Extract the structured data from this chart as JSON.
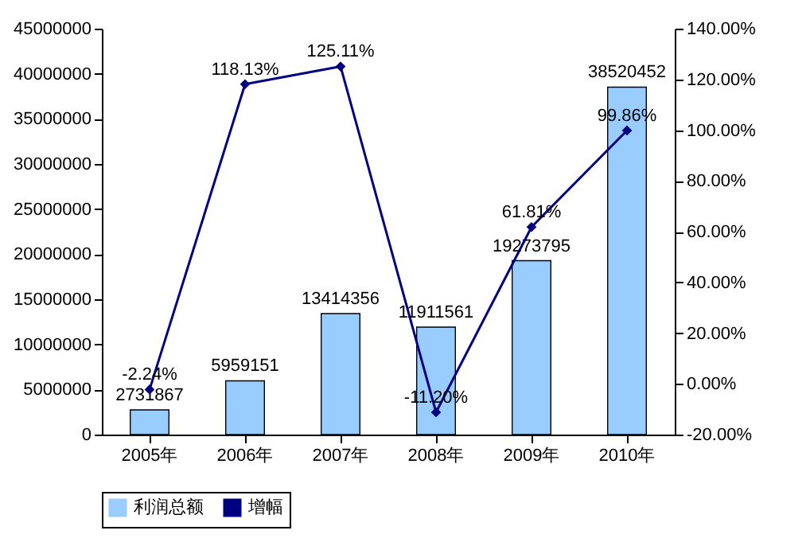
{
  "chart_data": {
    "type": "bar",
    "categories": [
      "2005年",
      "2006年",
      "2007年",
      "2008年",
      "2009年",
      "2010年"
    ],
    "series": [
      {
        "name": "利润总额",
        "color": "#99ccff",
        "values": [
          2731867,
          5959151,
          13414356,
          11911561,
          19273795,
          38520452
        ],
        "value_labels": [
          "2731867",
          "5959151",
          "13414356",
          "11911561",
          "19273795",
          "38520452"
        ]
      },
      {
        "name": "增幅",
        "type": "line",
        "axis": "y2",
        "color": "#000080",
        "values": [
          -2.24,
          118.13,
          125.11,
          -11.2,
          61.81,
          99.86
        ],
        "value_labels": [
          "-2.24%",
          "118.13%",
          "125.11%",
          "-11.20%",
          "61.81%",
          "99.86%"
        ]
      }
    ],
    "ylim": [
      0,
      45000000
    ],
    "yticks": [
      0,
      5000000,
      10000000,
      15000000,
      20000000,
      25000000,
      30000000,
      35000000,
      40000000,
      45000000
    ],
    "y2lim": [
      -20,
      140
    ],
    "y2ticks": [
      {
        "value": -20,
        "label": "-20.00%"
      },
      {
        "value": 0,
        "label": "0.00%"
      },
      {
        "value": 20,
        "label": "20.00%"
      },
      {
        "value": 40,
        "label": "40.00%"
      },
      {
        "value": 60,
        "label": "60.00%"
      },
      {
        "value": 80,
        "label": "80.00%"
      },
      {
        "value": 100,
        "label": "100.00%"
      },
      {
        "value": 120,
        "label": "120.00%"
      },
      {
        "value": 140,
        "label": "140.00%"
      }
    ],
    "legend": "bottom",
    "marker": "diamond",
    "grid": false
  }
}
